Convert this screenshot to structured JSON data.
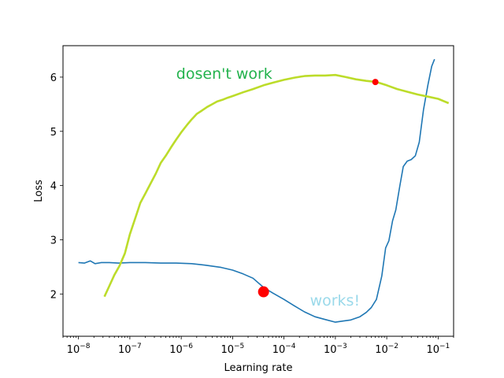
{
  "chart_data": {
    "type": "line",
    "xscale": "log",
    "xlim": [
      5e-09,
      0.2
    ],
    "ylim": [
      1.22,
      6.58
    ],
    "xlabel": "Learning rate",
    "ylabel": "Loss",
    "grid": false,
    "x_ticks": [
      {
        "value": 1e-08,
        "base": "10",
        "exp": "−8"
      },
      {
        "value": 1e-07,
        "base": "10",
        "exp": "−7"
      },
      {
        "value": 1e-06,
        "base": "10",
        "exp": "−6"
      },
      {
        "value": 1e-05,
        "base": "10",
        "exp": "−5"
      },
      {
        "value": 0.0001,
        "base": "10",
        "exp": "−4"
      },
      {
        "value": 0.001,
        "base": "10",
        "exp": "−3"
      },
      {
        "value": 0.01,
        "base": "10",
        "exp": "−2"
      },
      {
        "value": 0.1,
        "base": "10",
        "exp": "−1"
      }
    ],
    "y_ticks": [
      2,
      3,
      4,
      5,
      6
    ],
    "series": [
      {
        "color": "#1f77b4",
        "points": [
          [
            1e-08,
            2.58
          ],
          [
            1.3e-08,
            2.57
          ],
          [
            1.7e-08,
            2.61
          ],
          [
            2.1e-08,
            2.56
          ],
          [
            2.8e-08,
            2.58
          ],
          [
            4e-08,
            2.58
          ],
          [
            6e-08,
            2.57
          ],
          [
            1e-07,
            2.58
          ],
          [
            2e-07,
            2.58
          ],
          [
            4e-07,
            2.57
          ],
          [
            8e-07,
            2.57
          ],
          [
            1.6e-06,
            2.56
          ],
          [
            3e-06,
            2.53
          ],
          [
            6e-06,
            2.49
          ],
          [
            1e-05,
            2.44
          ],
          [
            1.6e-05,
            2.37
          ],
          [
            2.5e-05,
            2.29
          ],
          [
            4e-05,
            2.12
          ],
          [
            6e-05,
            2.02
          ],
          [
            0.0001,
            1.9
          ],
          [
            0.00016,
            1.78
          ],
          [
            0.00025,
            1.67
          ],
          [
            0.0004,
            1.58
          ],
          [
            0.00063,
            1.53
          ],
          [
            0.001,
            1.48
          ],
          [
            0.0014,
            1.5
          ],
          [
            0.002,
            1.52
          ],
          [
            0.003,
            1.58
          ],
          [
            0.004,
            1.66
          ],
          [
            0.005,
            1.75
          ],
          [
            0.0063,
            1.9
          ],
          [
            0.008,
            2.33
          ],
          [
            0.0095,
            2.85
          ],
          [
            0.011,
            2.98
          ],
          [
            0.013,
            3.35
          ],
          [
            0.015,
            3.55
          ],
          [
            0.018,
            4.0
          ],
          [
            0.021,
            4.35
          ],
          [
            0.025,
            4.45
          ],
          [
            0.03,
            4.48
          ],
          [
            0.036,
            4.55
          ],
          [
            0.043,
            4.8
          ],
          [
            0.052,
            5.4
          ],
          [
            0.063,
            5.85
          ],
          [
            0.075,
            6.2
          ],
          [
            0.085,
            6.33
          ]
        ]
      },
      {
        "color": "#bcdc2a",
        "points": [
          [
            3.2e-08,
            1.95
          ],
          [
            4e-08,
            2.15
          ],
          [
            5e-08,
            2.35
          ],
          [
            6.3e-08,
            2.52
          ],
          [
            8e-08,
            2.75
          ],
          [
            1e-07,
            3.1
          ],
          [
            1.3e-07,
            3.42
          ],
          [
            1.6e-07,
            3.68
          ],
          [
            2e-07,
            3.85
          ],
          [
            2.5e-07,
            4.03
          ],
          [
            3.2e-07,
            4.22
          ],
          [
            4e-07,
            4.42
          ],
          [
            5e-07,
            4.55
          ],
          [
            6.3e-07,
            4.7
          ],
          [
            8e-07,
            4.85
          ],
          [
            1e-06,
            4.98
          ],
          [
            1.3e-06,
            5.12
          ],
          [
            1.6e-06,
            5.22
          ],
          [
            2e-06,
            5.32
          ],
          [
            2.5e-06,
            5.38
          ],
          [
            3.2e-06,
            5.45
          ],
          [
            4e-06,
            5.5
          ],
          [
            5e-06,
            5.55
          ],
          [
            6.3e-06,
            5.58
          ],
          [
            8e-06,
            5.62
          ],
          [
            1e-05,
            5.65
          ],
          [
            1.6e-05,
            5.72
          ],
          [
            2.5e-05,
            5.78
          ],
          [
            4e-05,
            5.85
          ],
          [
            6.3e-05,
            5.9
          ],
          [
            0.0001,
            5.95
          ],
          [
            0.00016,
            5.99
          ],
          [
            0.00025,
            6.02
          ],
          [
            0.0004,
            6.03
          ],
          [
            0.00063,
            6.03
          ],
          [
            0.001,
            6.04
          ],
          [
            0.0016,
            6.0
          ],
          [
            0.0025,
            5.96
          ],
          [
            0.004,
            5.93
          ],
          [
            0.0063,
            5.91
          ],
          [
            0.01,
            5.85
          ],
          [
            0.016,
            5.78
          ],
          [
            0.025,
            5.73
          ],
          [
            0.04,
            5.68
          ],
          [
            0.063,
            5.64
          ],
          [
            0.1,
            5.6
          ],
          [
            0.16,
            5.52
          ]
        ]
      }
    ],
    "markers": [
      {
        "x": 4e-05,
        "y": 2.04,
        "color": "#ff0000",
        "size": "large"
      },
      {
        "x": 0.006,
        "y": 5.91,
        "color": "#ff0000",
        "size": "small"
      }
    ],
    "annotations": [
      {
        "text": "dosen't work",
        "x": 8e-07,
        "y": 5.97,
        "color": "#22b24c"
      },
      {
        "text": "works!",
        "x": 0.00032,
        "y": 1.79,
        "color": "#9ad9ea"
      }
    ]
  }
}
